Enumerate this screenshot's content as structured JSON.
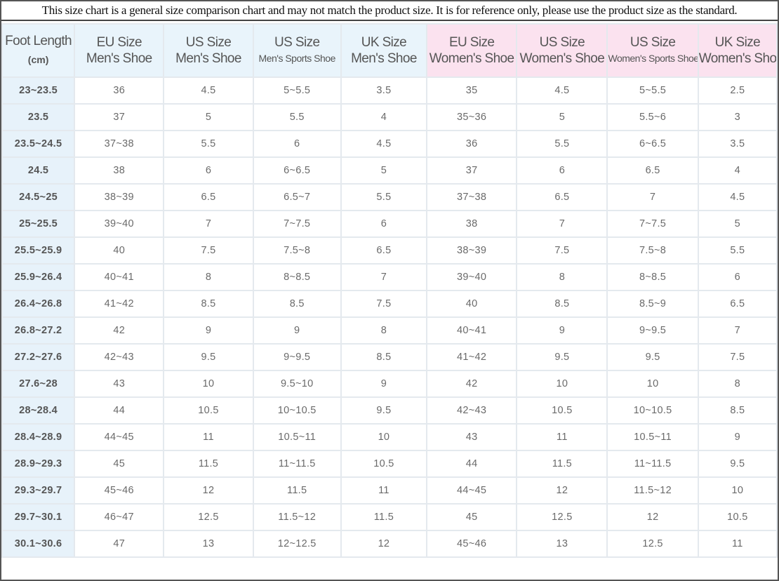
{
  "notice": "This size chart is a general size comparison chart and may not match the product size. It is for reference only, please use the product size as the standard.",
  "headers": [
    {
      "line1": "Foot Length",
      "line2": "(cm)",
      "group": "men",
      "style": "cm"
    },
    {
      "line1": "EU Size",
      "line2": "Men's Shoe",
      "group": "men",
      "style": "normal"
    },
    {
      "line1": "US Size",
      "line2": "Men's Shoe",
      "group": "men",
      "style": "normal"
    },
    {
      "line1": "US Size",
      "line2": "Men's Sports Shoe",
      "group": "men",
      "style": "small"
    },
    {
      "line1": "UK Size",
      "line2": "Men's Shoe",
      "group": "men",
      "style": "normal"
    },
    {
      "line1": "EU Size",
      "line2": "Women's Shoe",
      "group": "women",
      "style": "normal"
    },
    {
      "line1": "US Size",
      "line2": "Women's Shoe",
      "group": "women",
      "style": "normal"
    },
    {
      "line1": "US Size",
      "line2": "Women's Sports Shoe",
      "group": "women",
      "style": "small"
    },
    {
      "line1": "UK Size",
      "line2": "Women's Shoe",
      "group": "women",
      "style": "normal"
    }
  ],
  "rows": [
    [
      "23~23.5",
      "36",
      "4.5",
      "5~5.5",
      "3.5",
      "35",
      "4.5",
      "5~5.5",
      "2.5"
    ],
    [
      "23.5",
      "37",
      "5",
      "5.5",
      "4",
      "35~36",
      "5",
      "5.5~6",
      "3"
    ],
    [
      "23.5~24.5",
      "37~38",
      "5.5",
      "6",
      "4.5",
      "36",
      "5.5",
      "6~6.5",
      "3.5"
    ],
    [
      "24.5",
      "38",
      "6",
      "6~6.5",
      "5",
      "37",
      "6",
      "6.5",
      "4"
    ],
    [
      "24.5~25",
      "38~39",
      "6.5",
      "6.5~7",
      "5.5",
      "37~38",
      "6.5",
      "7",
      "4.5"
    ],
    [
      "25~25.5",
      "39~40",
      "7",
      "7~7.5",
      "6",
      "38",
      "7",
      "7~7.5",
      "5"
    ],
    [
      "25.5~25.9",
      "40",
      "7.5",
      "7.5~8",
      "6.5",
      "38~39",
      "7.5",
      "7.5~8",
      "5.5"
    ],
    [
      "25.9~26.4",
      "40~41",
      "8",
      "8~8.5",
      "7",
      "39~40",
      "8",
      "8~8.5",
      "6"
    ],
    [
      "26.4~26.8",
      "41~42",
      "8.5",
      "8.5",
      "7.5",
      "40",
      "8.5",
      "8.5~9",
      "6.5"
    ],
    [
      "26.8~27.2",
      "42",
      "9",
      "9",
      "8",
      "40~41",
      "9",
      "9~9.5",
      "7"
    ],
    [
      "27.2~27.6",
      "42~43",
      "9.5",
      "9~9.5",
      "8.5",
      "41~42",
      "9.5",
      "9.5",
      "7.5"
    ],
    [
      "27.6~28",
      "43",
      "10",
      "9.5~10",
      "9",
      "42",
      "10",
      "10",
      "8"
    ],
    [
      "28~28.4",
      "44",
      "10.5",
      "10~10.5",
      "9.5",
      "42~43",
      "10.5",
      "10~10.5",
      "8.5"
    ],
    [
      "28.4~28.9",
      "44~45",
      "11",
      "10.5~11",
      "10",
      "43",
      "11",
      "10.5~11",
      "9"
    ],
    [
      "28.9~29.3",
      "45",
      "11.5",
      "11~11.5",
      "10.5",
      "44",
      "11.5",
      "11~11.5",
      "9.5"
    ],
    [
      "29.3~29.7",
      "45~46",
      "12",
      "11.5",
      "11",
      "44~45",
      "12",
      "11.5~12",
      "10"
    ],
    [
      "29.7~30.1",
      "46~47",
      "12.5",
      "11.5~12",
      "11.5",
      "45",
      "12.5",
      "12",
      "10.5"
    ],
    [
      "30.1~30.6",
      "47",
      "13",
      "12~12.5",
      "12",
      "45~46",
      "13",
      "12.5",
      "11"
    ]
  ],
  "colors": {
    "men_header_bg": "#e9f4fb",
    "women_header_bg": "#fbe2ef",
    "length_column_bg": "#e7f2fa",
    "grid_line": "#e4e9ee"
  }
}
